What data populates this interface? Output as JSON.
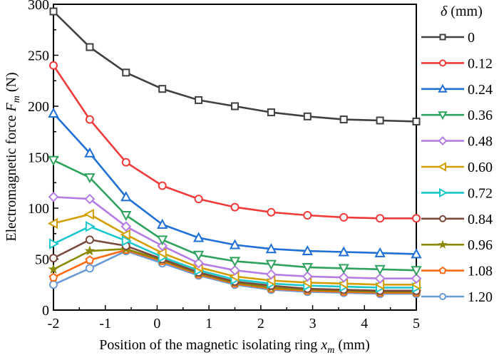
{
  "chart_data": {
    "type": "line",
    "title": "",
    "xlabel": {
      "prefix": "Position of the magnetic isolating ring ",
      "var": "x",
      "sub": "m",
      "suffix": " (mm)"
    },
    "ylabel": {
      "prefix": "Electromagnetic force ",
      "var": "F",
      "sub": "m",
      "suffix": " (N)"
    },
    "xlim": [
      -2,
      5
    ],
    "ylim": [
      0,
      300
    ],
    "xticks": [
      -2,
      -1,
      0,
      1,
      2,
      3,
      4,
      5
    ],
    "xtick_labels": [
      "-2",
      "-1",
      "0",
      "1",
      "2",
      "3",
      "4",
      "5"
    ],
    "yticks": [
      0,
      50,
      100,
      150,
      200,
      250,
      300
    ],
    "ytick_labels": [
      "0",
      "50",
      "100",
      "150",
      "200",
      "250",
      "300"
    ],
    "grid": false,
    "legend": {
      "title_var": "δ",
      "title_suffix": " (mm)",
      "placement": "right-outside"
    },
    "x": [
      -2,
      -1.3,
      -0.6,
      0.1,
      0.8,
      1.5,
      2.2,
      2.9,
      3.6,
      4.3,
      5.0
    ],
    "series": [
      {
        "name": "0",
        "color": "#404040",
        "marker": "square",
        "values": [
          293,
          258,
          233,
          217,
          206,
          200,
          194,
          190,
          187,
          186,
          185
        ]
      },
      {
        "name": "0.12",
        "color": "#f03a3a",
        "marker": "circle",
        "values": [
          240,
          187,
          145,
          122,
          109,
          101,
          96,
          93,
          91,
          90,
          90
        ]
      },
      {
        "name": "0.24",
        "color": "#1f6fd6",
        "marker": "triangle-up",
        "values": [
          193,
          154,
          111,
          84,
          71,
          64,
          60,
          58,
          57,
          56,
          55
        ]
      },
      {
        "name": "0.36",
        "color": "#2fa35e",
        "marker": "triangle-down",
        "values": [
          147,
          130,
          93,
          69,
          54,
          48,
          45,
          42,
          41,
          40,
          39
        ]
      },
      {
        "name": "0.48",
        "color": "#b57de3",
        "marker": "diamond",
        "values": [
          111,
          109,
          82,
          63,
          46,
          39,
          35,
          33,
          32,
          31,
          31
        ]
      },
      {
        "name": "0.60",
        "color": "#d39e00",
        "marker": "triangle-left",
        "values": [
          85,
          94,
          74,
          56,
          42,
          33,
          29,
          27,
          26,
          25,
          25
        ]
      },
      {
        "name": "0.72",
        "color": "#1ac8cc",
        "marker": "triangle-right",
        "values": [
          65,
          82,
          68,
          52,
          39,
          30,
          26,
          24,
          23,
          22,
          22
        ]
      },
      {
        "name": "0.84",
        "color": "#7a4a3e",
        "marker": "circle",
        "values": [
          51,
          69,
          63,
          50,
          37,
          28,
          24,
          21,
          20,
          19,
          19
        ]
      },
      {
        "name": "0.96",
        "color": "#8a8a00",
        "marker": "star",
        "values": [
          40,
          58,
          60,
          49,
          36,
          27,
          22,
          20,
          19,
          18,
          18
        ]
      },
      {
        "name": "1.08",
        "color": "#ff6a13",
        "marker": "pentagon",
        "values": [
          32,
          49,
          59,
          48,
          35,
          26,
          21,
          19,
          18,
          17,
          17
        ]
      },
      {
        "name": "1.20",
        "color": "#6a9bd4",
        "marker": "circle",
        "values": [
          25,
          41,
          58,
          46,
          34,
          25,
          20,
          18,
          17,
          16,
          16
        ]
      }
    ]
  }
}
